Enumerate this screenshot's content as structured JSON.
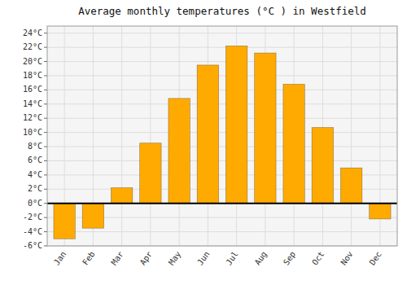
{
  "chart_data": {
    "type": "bar",
    "title": "Average monthly temperatures (°C ) in Westfield",
    "categories": [
      "Jan",
      "Feb",
      "Mar",
      "Apr",
      "May",
      "Jun",
      "Jul",
      "Aug",
      "Sep",
      "Oct",
      "Nov",
      "Dec"
    ],
    "values": [
      -5.0,
      -3.5,
      2.2,
      8.5,
      14.8,
      19.5,
      22.2,
      21.2,
      16.8,
      10.7,
      5.0,
      -2.2
    ],
    "color": "#FFAA00",
    "ylim": [
      -6,
      25
    ],
    "yticks": [
      {
        "value": -6,
        "label": "-6°C"
      },
      {
        "value": -4,
        "label": "-4°C"
      },
      {
        "value": -2,
        "label": "-2°C"
      },
      {
        "value": 0,
        "label": "0°C"
      },
      {
        "value": 2,
        "label": "2°C"
      },
      {
        "value": 4,
        "label": "4°C"
      },
      {
        "value": 6,
        "label": "6°C"
      },
      {
        "value": 8,
        "label": "8°C"
      },
      {
        "value": 10,
        "label": "10°C"
      },
      {
        "value": 12,
        "label": "12°C"
      },
      {
        "value": 14,
        "label": "14°C"
      },
      {
        "value": 16,
        "label": "16°C"
      },
      {
        "value": 18,
        "label": "18°C"
      },
      {
        "value": 20,
        "label": "20°C"
      },
      {
        "value": 22,
        "label": "22°C"
      },
      {
        "value": 24,
        "label": "24°C"
      }
    ],
    "grid": true
  }
}
